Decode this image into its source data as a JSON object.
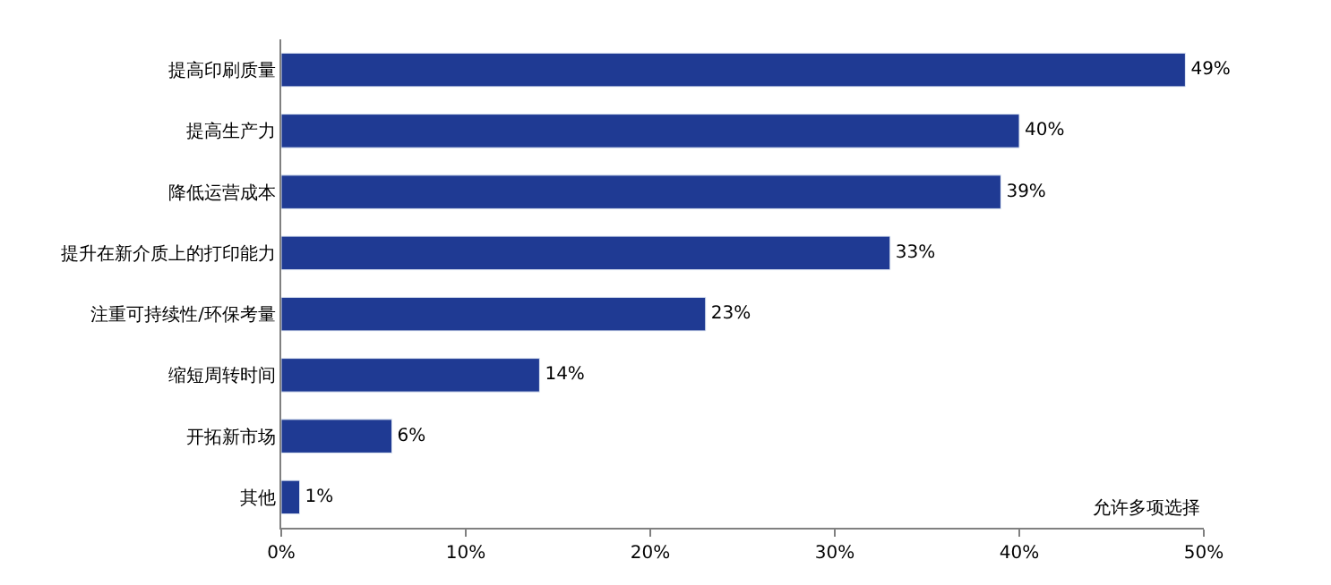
{
  "chart_data": {
    "type": "bar",
    "orientation": "horizontal",
    "categories": [
      "提高印刷质量",
      "提高生产力",
      "降低运营成本",
      "提升在新介质上的打印能力",
      "注重可持续性/环保考量",
      "缩短周转时间",
      "开拓新市场",
      "其他"
    ],
    "values": [
      49,
      40,
      39,
      33,
      23,
      14,
      6,
      1
    ],
    "value_labels": [
      "49%",
      "40%",
      "39%",
      "33%",
      "23%",
      "14%",
      "6%",
      "1%"
    ],
    "color": "#1f3a93",
    "xlim": [
      0,
      50
    ],
    "xticks": [
      {
        "value": 0,
        "label": "0%"
      },
      {
        "value": 10,
        "label": "10%"
      },
      {
        "value": 20,
        "label": "20%"
      },
      {
        "value": 30,
        "label": "30%"
      },
      {
        "value": 40,
        "label": "40%"
      },
      {
        "value": 50,
        "label": "50%"
      }
    ],
    "legend": false,
    "annotations": [
      "允许多项选择"
    ]
  }
}
